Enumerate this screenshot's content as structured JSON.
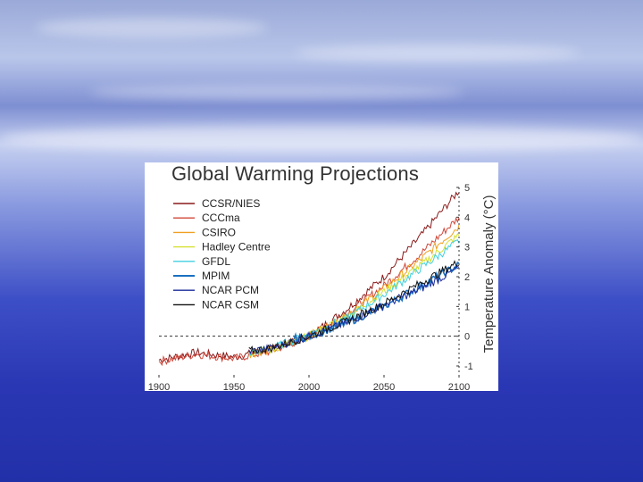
{
  "chart_data": {
    "type": "line",
    "title": "Global Warming Projections",
    "ylabel": "Temperature Anomaly (°C)",
    "xlabel": "",
    "xlim": [
      1900,
      2100
    ],
    "ylim": [
      -1.3,
      5
    ],
    "xticks": [
      "1900",
      "1950",
      "2000",
      "2050",
      "2100"
    ],
    "yticks": [
      "-1",
      "0",
      "1",
      "2",
      "3",
      "4",
      "5"
    ],
    "reference_line": 0,
    "series": [
      {
        "name": "CCSR/NIES",
        "color": "#8b1a1a",
        "x": [
          1900,
          1925,
          1950,
          1975,
          2000,
          2025,
          2050,
          2075,
          2100
        ],
        "values": [
          -0.8,
          -0.55,
          -0.7,
          -0.45,
          0.0,
          0.9,
          2.0,
          3.4,
          4.9
        ]
      },
      {
        "name": "CCCma",
        "color": "#d0483a",
        "x": [
          1900,
          1925,
          1950,
          1975,
          2000,
          2025,
          2050,
          2075,
          2100
        ],
        "values": [
          -0.85,
          -0.6,
          -0.75,
          -0.5,
          0.0,
          0.75,
          1.7,
          2.8,
          4.0
        ]
      },
      {
        "name": "CSIRO",
        "color": "#f0a020",
        "x": [
          1960,
          1975,
          2000,
          2025,
          2050,
          2075,
          2100
        ],
        "values": [
          -0.6,
          -0.45,
          0.0,
          0.7,
          1.6,
          2.6,
          3.7
        ]
      },
      {
        "name": "Hadley Centre",
        "color": "#d6e030",
        "x": [
          1960,
          1975,
          2000,
          2025,
          2050,
          2075,
          2100
        ],
        "values": [
          -0.55,
          -0.45,
          0.0,
          0.65,
          1.5,
          2.4,
          3.4
        ]
      },
      {
        "name": "GFDL",
        "color": "#40d0e0",
        "x": [
          1960,
          1975,
          2000,
          2025,
          2050,
          2075,
          2100
        ],
        "values": [
          -0.55,
          -0.4,
          0.05,
          0.6,
          1.4,
          2.3,
          3.2
        ]
      },
      {
        "name": "MPIM",
        "color": "#1a70c0",
        "x": [
          1990,
          2000,
          2025,
          2050,
          2075,
          2100
        ],
        "values": [
          -0.1,
          0.0,
          0.45,
          1.0,
          1.7,
          2.4
        ]
      },
      {
        "name": "NCAR PCM",
        "color": "#1a2a9a",
        "x": [
          1960,
          1975,
          2000,
          2025,
          2050,
          2075,
          2100
        ],
        "values": [
          -0.5,
          -0.4,
          0.0,
          0.45,
          1.05,
          1.6,
          2.3
        ]
      },
      {
        "name": "NCAR CSM",
        "color": "#111111",
        "x": [
          1960,
          1975,
          2000,
          2025,
          2050,
          2075,
          2100
        ],
        "values": [
          -0.5,
          -0.4,
          0.0,
          0.5,
          1.1,
          1.8,
          2.5
        ]
      }
    ]
  }
}
